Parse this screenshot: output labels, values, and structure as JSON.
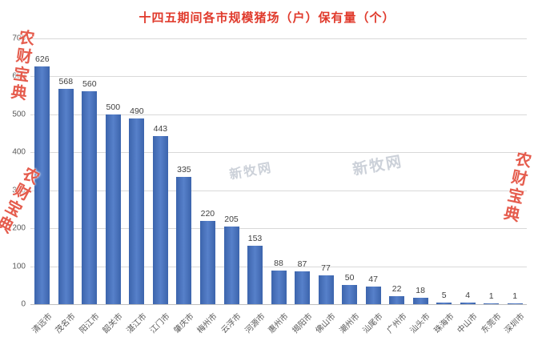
{
  "watermarks": {
    "brand_text": "农财宝典",
    "site_text": "新牧网"
  },
  "chart_data": {
    "type": "bar",
    "title": "十四五期间各市规模猪场（户）保有量（个）",
    "categories": [
      "清远市",
      "茂名市",
      "阳江市",
      "韶关市",
      "湛江市",
      "江门市",
      "肇庆市",
      "梅州市",
      "云浮市",
      "河源市",
      "惠州市",
      "揭阳市",
      "佛山市",
      "潮州市",
      "汕尾市",
      "广州市",
      "汕头市",
      "珠海市",
      "中山市",
      "东莞市",
      "深圳市"
    ],
    "values": [
      626,
      568,
      560,
      500,
      490,
      443,
      335,
      220,
      205,
      153,
      88,
      87,
      77,
      50,
      47,
      22,
      18,
      5,
      4,
      1,
      1
    ],
    "xlabel": "",
    "ylabel": "",
    "ylim": [
      0,
      700
    ],
    "ytick_interval": 100,
    "grid": true,
    "legend": "none",
    "bar_color": "#4472c4",
    "title_color": "#e03a2c",
    "grid_color": "#d9d9d9",
    "axis_color": "#bfbfbf"
  }
}
